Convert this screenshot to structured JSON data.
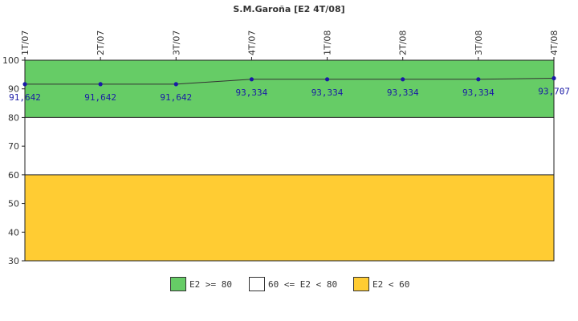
{
  "chart_data": {
    "type": "line",
    "title": "S.M.Garoña [E2 4T/08]",
    "categories": [
      "1T/07",
      "2T/07",
      "3T/07",
      "4T/07",
      "1T/08",
      "2T/08",
      "3T/08",
      "4T/08"
    ],
    "values": [
      91.642,
      91.642,
      91.642,
      93.334,
      93.334,
      93.334,
      93.334,
      93.707
    ],
    "value_labels": [
      "91,642",
      "91,642",
      "91,642",
      "93,334",
      "93,334",
      "93,334",
      "93,334",
      "93,707"
    ],
    "ylim": [
      30,
      100
    ],
    "yticks": [
      30,
      40,
      50,
      60,
      70,
      80,
      90,
      100
    ],
    "bands": [
      {
        "label": "E2 >= 80",
        "from": 80,
        "to": 100,
        "color": "#66cc66"
      },
      {
        "label": "60 <= E2 < 80",
        "from": 60,
        "to": 80,
        "color": "#ffffff"
      },
      {
        "label": "E2 < 60",
        "from": 30,
        "to": 60,
        "color": "#ffcc33"
      }
    ],
    "line_color": "#333333",
    "point_color": "#1a1aa6",
    "legend_position": "bottom"
  }
}
